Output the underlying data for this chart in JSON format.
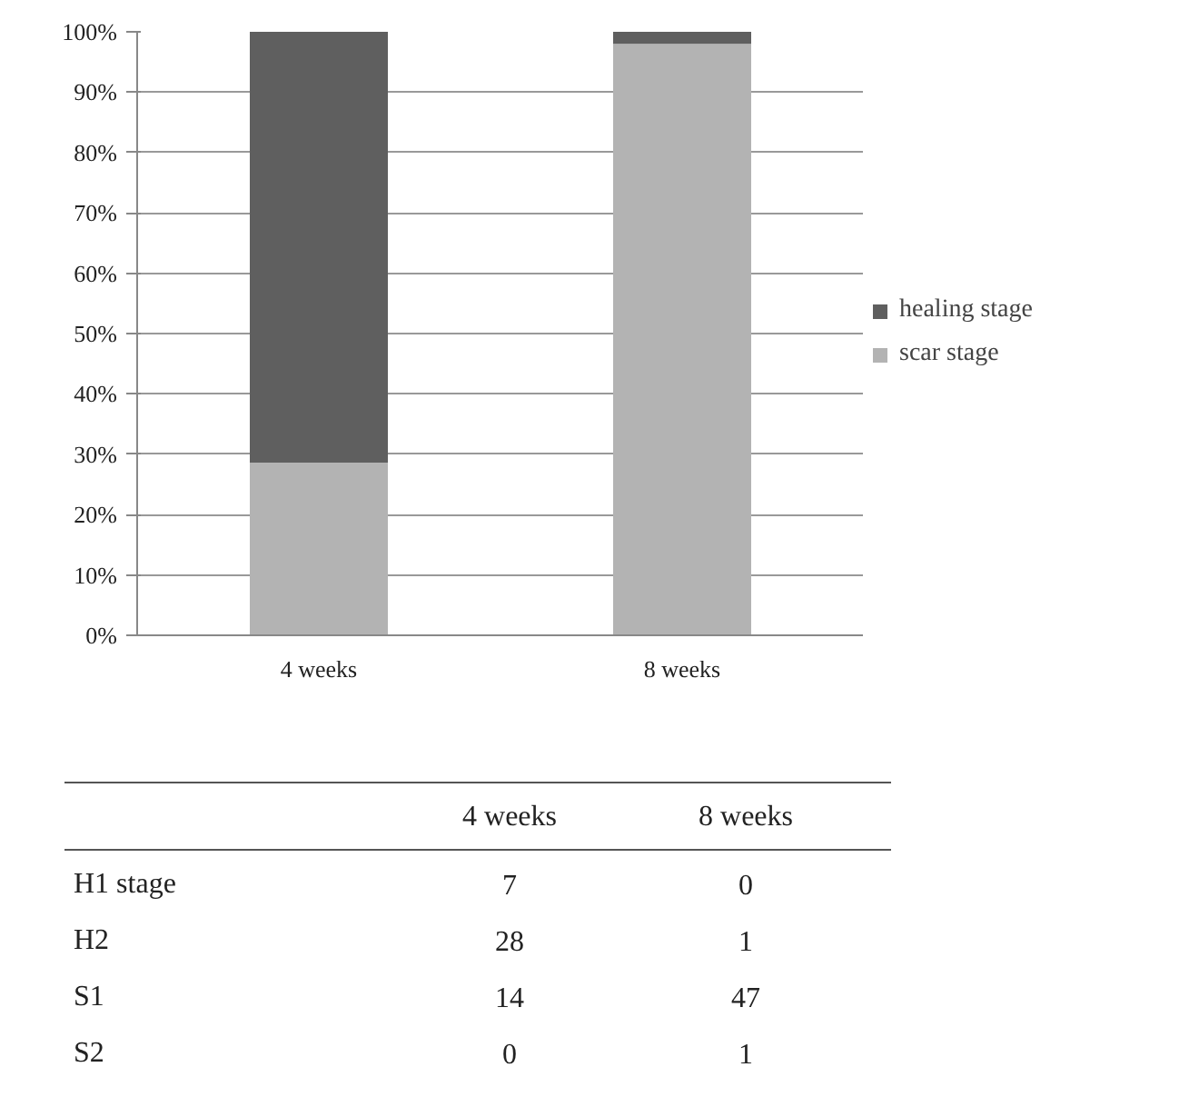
{
  "chart_data": {
    "type": "bar",
    "stacked": true,
    "categories": [
      "4 weeks",
      "8 weeks"
    ],
    "series": [
      {
        "name": "scar stage",
        "color": "#b3b3b3",
        "values": [
          28.6,
          98
        ]
      },
      {
        "name": "healing stage",
        "color": "#5f5f5f",
        "values": [
          71.4,
          2
        ]
      }
    ],
    "ylim": [
      0,
      100
    ],
    "yticks": [
      {
        "value": 0,
        "label": "0%"
      },
      {
        "value": 10,
        "label": "10%"
      },
      {
        "value": 20,
        "label": "20%"
      },
      {
        "value": 30,
        "label": "30%"
      },
      {
        "value": 40,
        "label": "40%"
      },
      {
        "value": 50,
        "label": "50%"
      },
      {
        "value": 60,
        "label": "60%"
      },
      {
        "value": 70,
        "label": "70%"
      },
      {
        "value": 80,
        "label": "80%"
      },
      {
        "value": 90,
        "label": "90%"
      },
      {
        "value": 100,
        "label": "100%"
      }
    ],
    "grid": "y",
    "legend": "right",
    "annotations": [
      "4 weeks",
      "8 weeks",
      "H1 stage",
      "7",
      "0",
      "H2",
      "28",
      "1",
      "S1",
      "14",
      "47",
      "S2",
      "0",
      "1"
    ]
  }
}
